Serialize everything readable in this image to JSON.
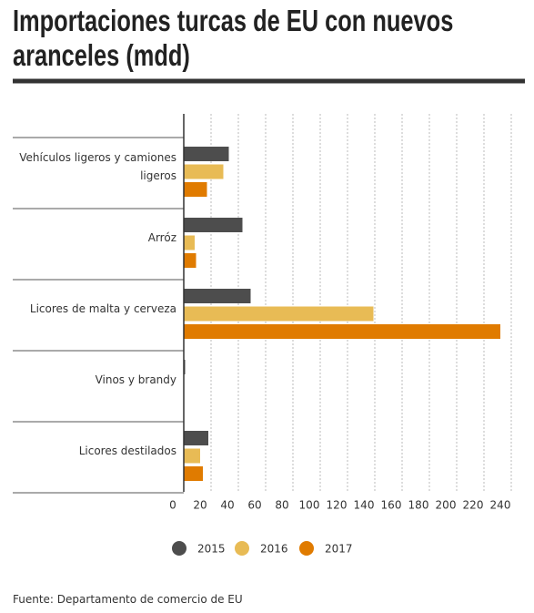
{
  "chart_data": {
    "type": "barh",
    "title": "Importaciones turcas de EU con nuevos aranceles (mdd)",
    "categories": [
      "Vehículos ligeros y camiones ligeros",
      "Arróz",
      "Licores de malta y cerveza",
      "Vinos y brandy",
      "Licores destilados"
    ],
    "series": [
      {
        "name": "2015",
        "color": "#4d4d4d",
        "values": [
          33,
          43,
          49,
          1,
          18
        ]
      },
      {
        "name": "2016",
        "color": "#e8bb55",
        "values": [
          29,
          8,
          139,
          0,
          12
        ]
      },
      {
        "name": "2017",
        "color": "#e07b00",
        "values": [
          17,
          9,
          232,
          0,
          14
        ]
      }
    ],
    "xlim": [
      0,
      242
    ],
    "xticks": [
      0,
      20,
      40,
      60,
      80,
      100,
      120,
      140,
      160,
      180,
      200,
      220,
      240
    ],
    "grid": true,
    "legend": "bottom",
    "source": "Fuente: Departamento de comercio de EU"
  }
}
